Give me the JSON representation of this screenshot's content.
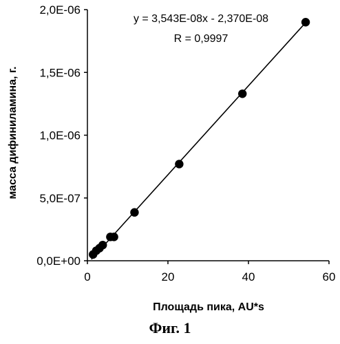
{
  "chart_data": {
    "type": "scatter",
    "title": "",
    "xlabel": "Площадь пика, AU*s",
    "ylabel": "масса дифиниламина, г.",
    "xlim": [
      0,
      60
    ],
    "ylim": [
      0,
      2e-06
    ],
    "x_ticks": [
      0,
      20,
      40,
      60
    ],
    "x_tick_labels": [
      "0",
      "20",
      "40",
      "60"
    ],
    "y_ticks": [
      0,
      5e-07,
      1e-06,
      1.5e-06,
      2e-06
    ],
    "y_tick_labels": [
      "0,0E+00",
      "5,0E-07",
      "1,0E-06",
      "1,5E-06",
      "2,0E-06"
    ],
    "grid": false,
    "series": [
      {
        "marker": "circle",
        "color": "#000000",
        "x": [
          1.4,
          2.2,
          3.0,
          3.8,
          5.7,
          6.6,
          11.7,
          22.8,
          38.5,
          54.2
        ],
        "y": [
          5e-08,
          8e-08,
          1e-07,
          1.25e-07,
          1.9e-07,
          1.9e-07,
          3.85e-07,
          7.7e-07,
          1.33e-06,
          1.9e-06
        ]
      }
    ],
    "trendline": {
      "slope": 3.543e-08,
      "intercept": -2.37e-08,
      "x_range": [
        1.0,
        54.4
      ]
    },
    "annotations": {
      "equation": "y = 3,543E-08x - 2,370E-08",
      "r_value": "R = 0,9997"
    }
  },
  "caption": "Фиг. 1"
}
